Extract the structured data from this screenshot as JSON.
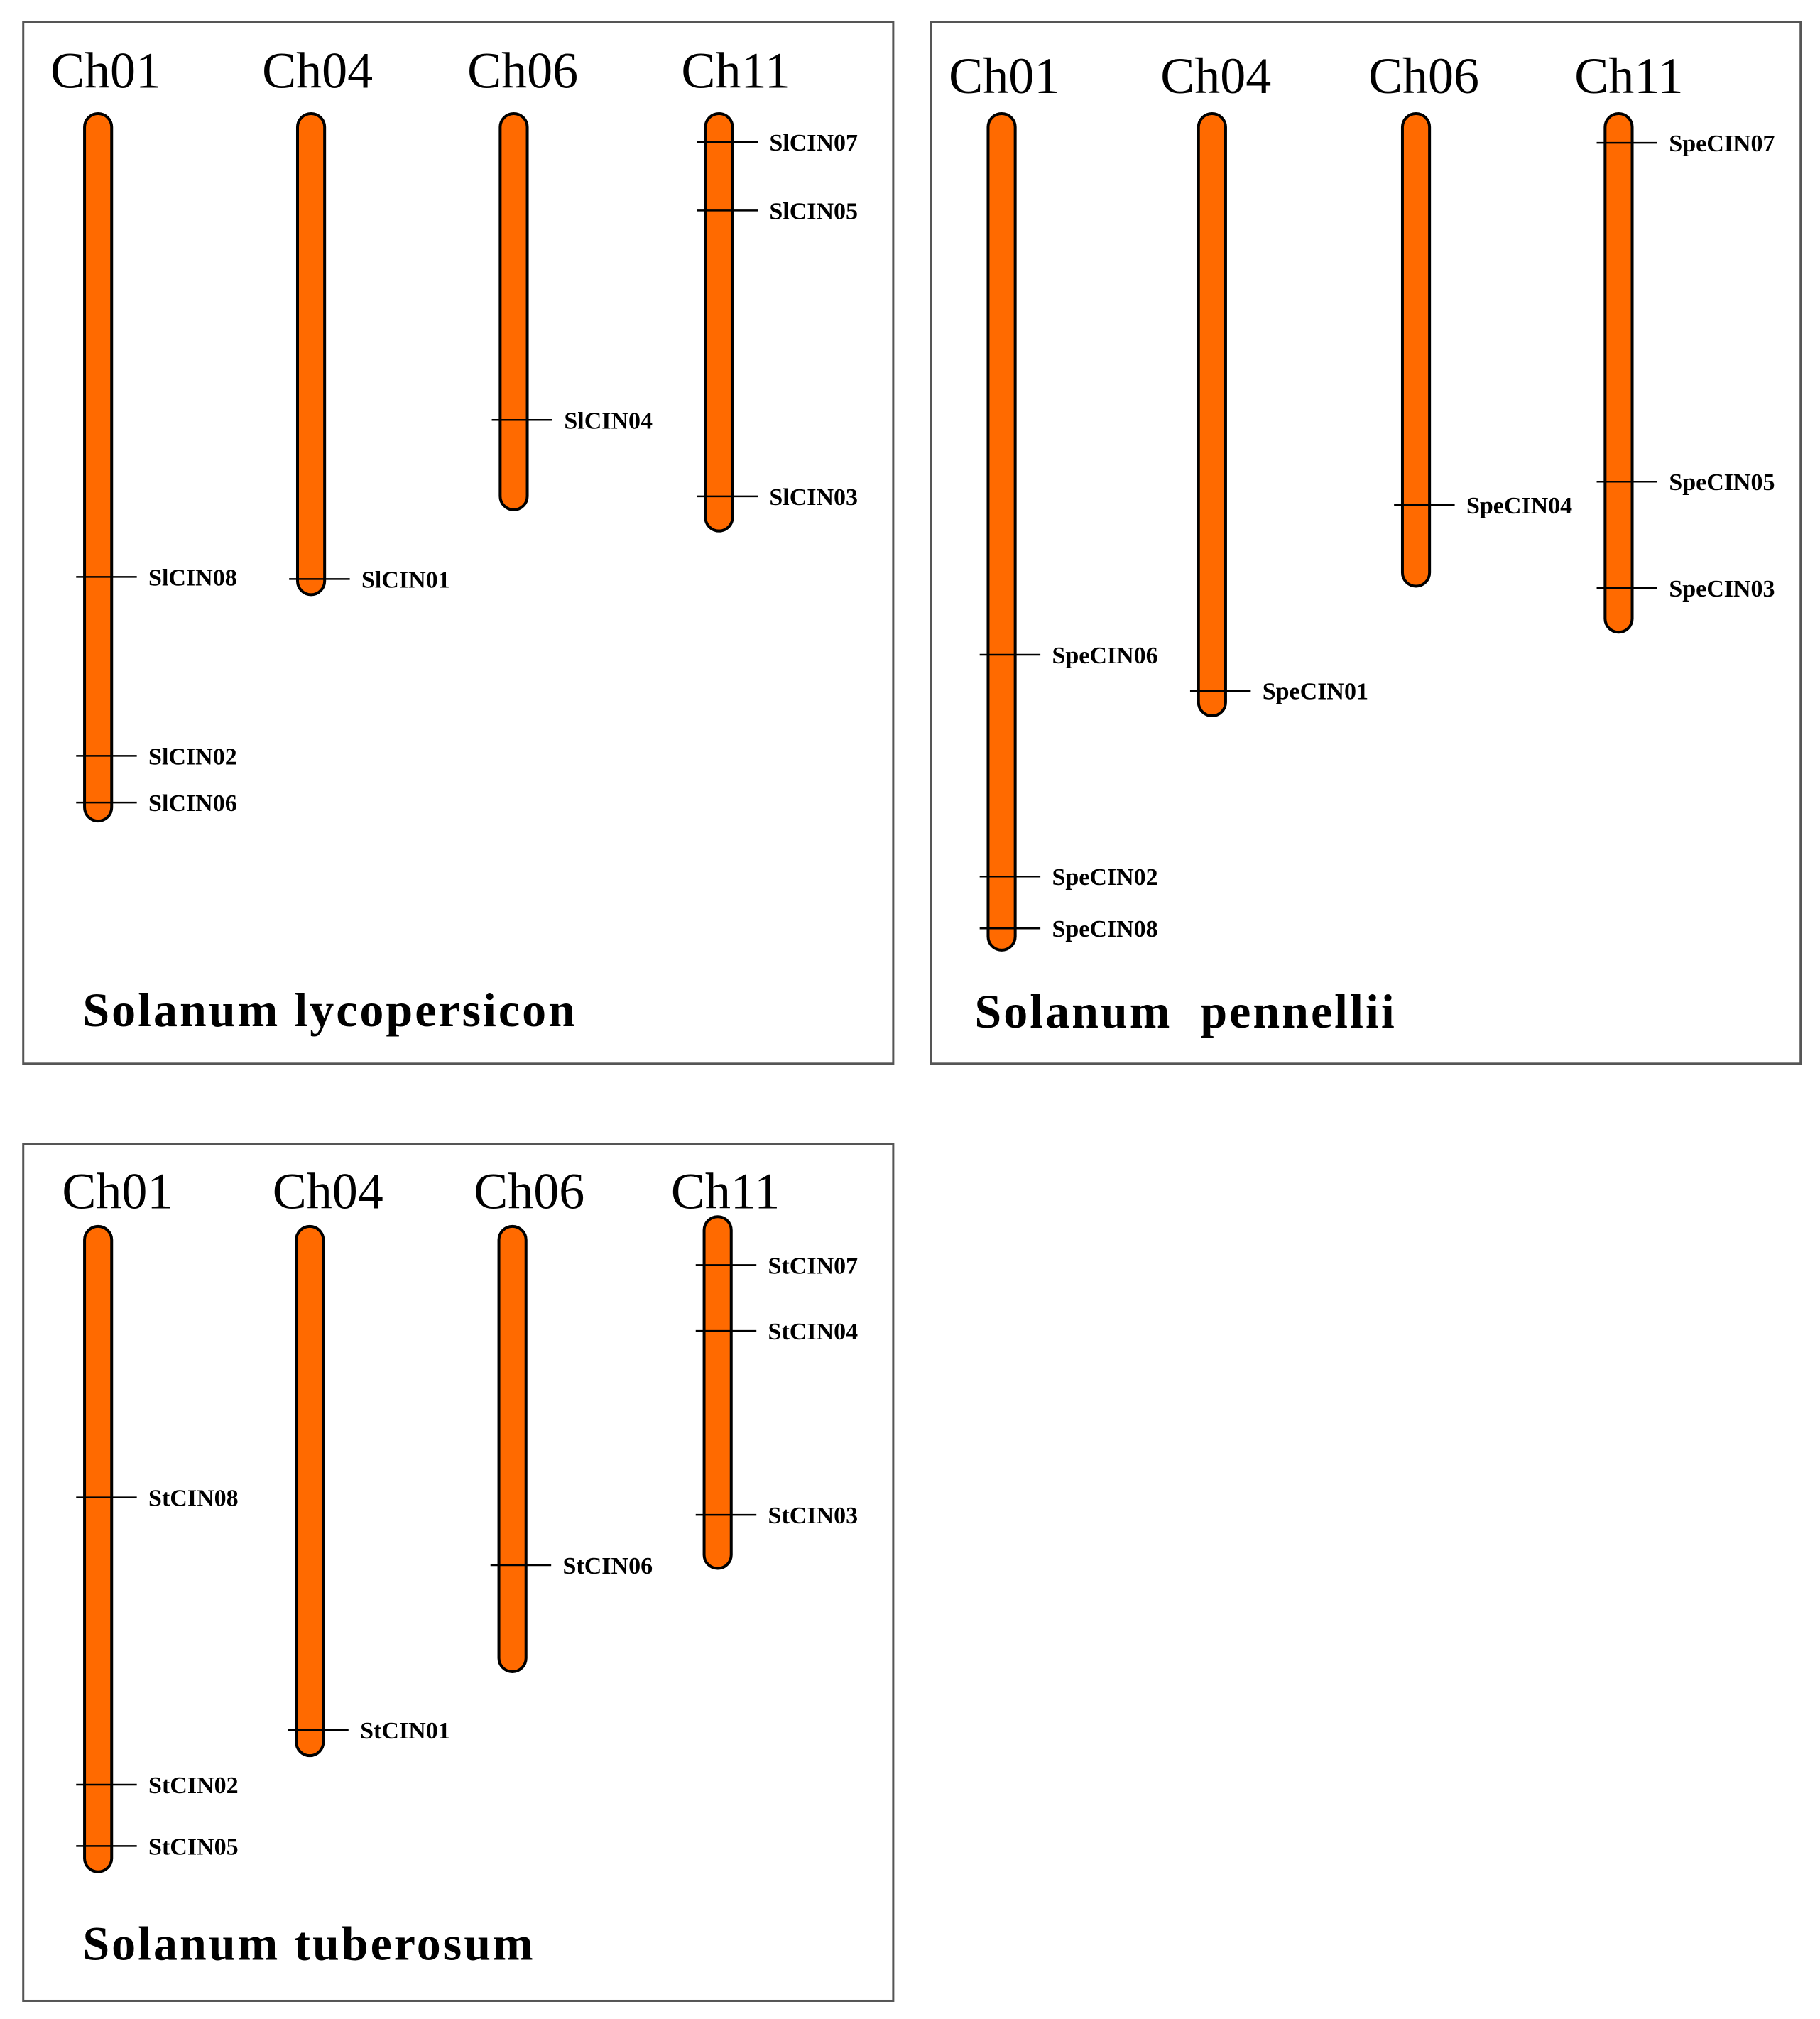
{
  "colors": {
    "chromosome_fill": "#ff6a00",
    "outline": "#000000",
    "panel_border": "#555555"
  },
  "panels": [
    {
      "species": "Solanum lycopersicon",
      "chromosomes": [
        {
          "name": "Ch01",
          "start": 0.0,
          "end": 1.0,
          "genes": [
            {
              "name": "SlCIN08",
              "pos": 0.655
            },
            {
              "name": "SlCIN02",
              "pos": 0.908
            },
            {
              "name": "SlCIN06",
              "pos": 0.974
            }
          ]
        },
        {
          "name": "Ch04",
          "start": 0.0,
          "end": 0.68,
          "genes": [
            {
              "name": "SlCIN01",
              "pos": 0.658
            }
          ]
        },
        {
          "name": "Ch06",
          "start": 0.0,
          "end": 0.56,
          "genes": [
            {
              "name": "SlCIN04",
              "pos": 0.433
            }
          ]
        },
        {
          "name": "Ch11",
          "start": 0.0,
          "end": 0.59,
          "genes": [
            {
              "name": "SlCIN07",
              "pos": 0.04
            },
            {
              "name": "SlCIN05",
              "pos": 0.137
            },
            {
              "name": "SlCIN03",
              "pos": 0.541
            }
          ]
        }
      ]
    },
    {
      "species": "Solanum  pennellii",
      "chromosomes": [
        {
          "name": "Ch01",
          "start": 0.0,
          "end": 1.0,
          "genes": [
            {
              "name": "SpeCIN06",
              "pos": 0.647
            },
            {
              "name": "SpeCIN02",
              "pos": 0.912
            },
            {
              "name": "SpeCIN08",
              "pos": 0.974
            }
          ]
        },
        {
          "name": "Ch04",
          "start": 0.0,
          "end": 0.72,
          "genes": [
            {
              "name": "SpeCIN01",
              "pos": 0.69
            }
          ]
        },
        {
          "name": "Ch06",
          "start": 0.0,
          "end": 0.565,
          "genes": [
            {
              "name": "SpeCIN04",
              "pos": 0.468
            }
          ]
        },
        {
          "name": "Ch11",
          "start": 0.0,
          "end": 0.62,
          "genes": [
            {
              "name": "SpeCIN07",
              "pos": 0.035
            },
            {
              "name": "SpeCIN05",
              "pos": 0.44
            },
            {
              "name": "SpeCIN03",
              "pos": 0.567
            }
          ]
        }
      ]
    },
    {
      "species": "Solanum tuberosum",
      "chromosomes": [
        {
          "name": "Ch01",
          "start": 0.0,
          "end": 1.0,
          "genes": [
            {
              "name": "StCIN08",
              "pos": 0.42
            },
            {
              "name": "StCIN02",
              "pos": 0.865
            },
            {
              "name": "StCIN05",
              "pos": 0.96
            }
          ]
        },
        {
          "name": "Ch04",
          "start": 0.0,
          "end": 0.82,
          "genes": [
            {
              "name": "StCIN01",
              "pos": 0.78
            }
          ]
        },
        {
          "name": "Ch06",
          "start": 0.0,
          "end": 0.69,
          "genes": [
            {
              "name": "StCIN06",
              "pos": 0.525
            }
          ]
        },
        {
          "name": "Ch11",
          "start": -0.015,
          "end": 0.53,
          "genes": [
            {
              "name": "StCIN07",
              "pos": 0.06
            },
            {
              "name": "StCIN04",
              "pos": 0.162
            },
            {
              "name": "StCIN03",
              "pos": 0.447
            }
          ]
        }
      ]
    }
  ]
}
